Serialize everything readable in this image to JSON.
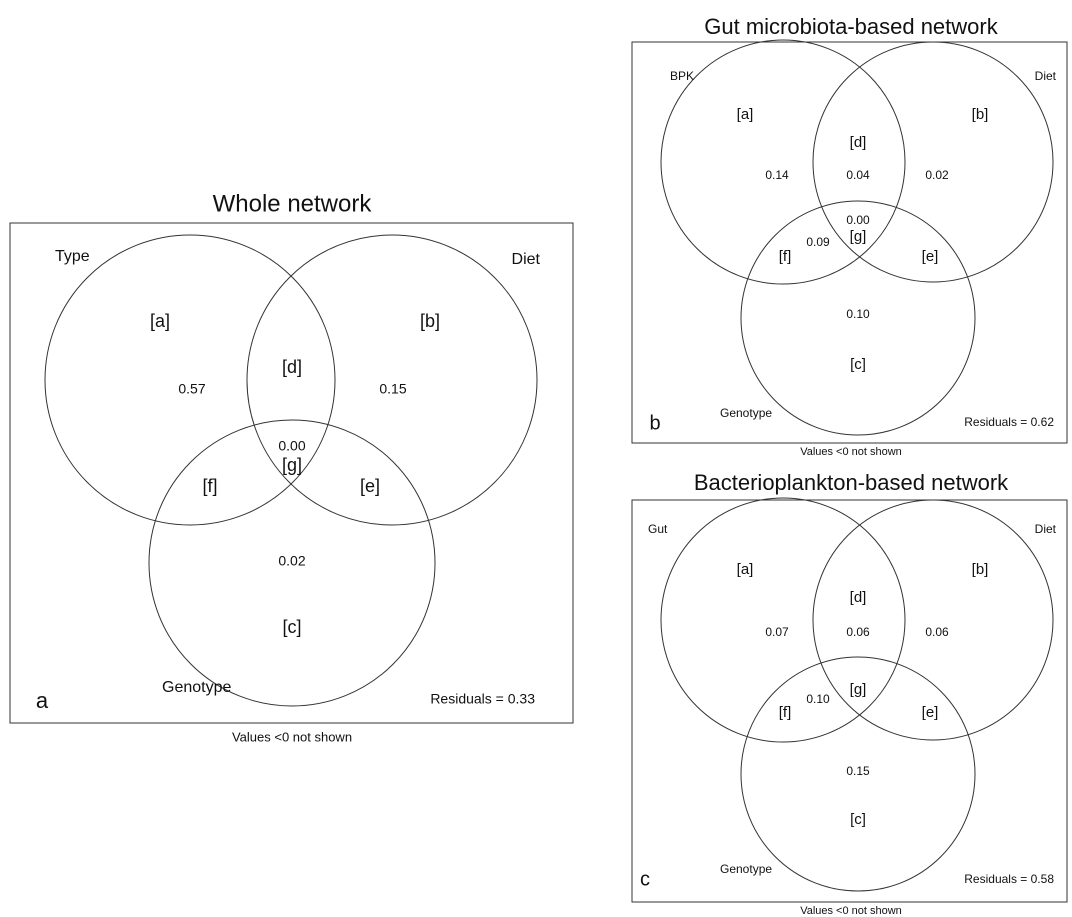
{
  "panels": [
    {
      "title": "Whole network",
      "letter": "a",
      "sets": [
        "Type",
        "Diet",
        "Genotype"
      ],
      "fractions": [
        {
          "label": "[a]",
          "value": "0.57"
        },
        {
          "label": "[b]",
          "value": "0.15"
        },
        {
          "label": "[c]",
          "value": "0.02"
        },
        {
          "label": "[d]"
        },
        {
          "label": "[e]"
        },
        {
          "label": "[f]"
        },
        {
          "label": "[g]",
          "value": "0.00"
        }
      ],
      "residuals": "Residuals = 0.33",
      "note": "Values <0 not shown"
    },
    {
      "title": "Gut microbiota-based network",
      "letter": "b",
      "sets": [
        "BPK",
        "Diet",
        "Genotype"
      ],
      "fractions": [
        {
          "label": "[a]",
          "value": "0.14"
        },
        {
          "label": "[b]",
          "value": "0.02"
        },
        {
          "label": "[c]",
          "value": "0.10"
        },
        {
          "label": "[d]",
          "value": "0.04"
        },
        {
          "label": "[e]"
        },
        {
          "label": "[f]",
          "value": "0.09"
        },
        {
          "label": "[g]",
          "value": "0.00"
        }
      ],
      "residuals": "Residuals = 0.62",
      "note": "Values <0 not shown"
    },
    {
      "title": "Bacterioplankton-based network",
      "letter": "c",
      "sets": [
        "Gut",
        "Diet",
        "Genotype"
      ],
      "fractions": [
        {
          "label": "[a]",
          "value": "0.07"
        },
        {
          "label": "[b]",
          "value": "0.06"
        },
        {
          "label": "[c]",
          "value": "0.15"
        },
        {
          "label": "[d]",
          "value": "0.06"
        },
        {
          "label": "[e]"
        },
        {
          "label": "[f]",
          "value": "0.10"
        },
        {
          "label": "[g]"
        }
      ],
      "residuals": "Residuals = 0.58",
      "note": "Values <0 not shown"
    }
  ]
}
